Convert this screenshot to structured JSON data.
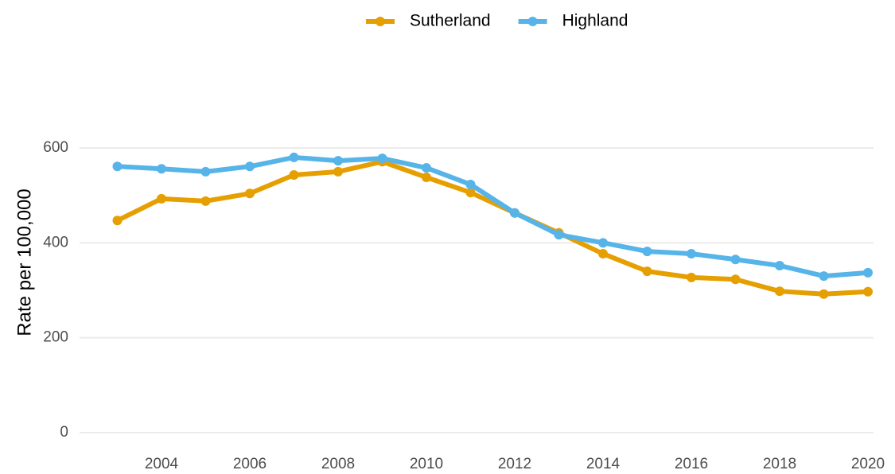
{
  "chart_data": {
    "type": "line",
    "y_label": "Rate per 100,000",
    "x": [
      2003,
      2004,
      2005,
      2006,
      2007,
      2008,
      2009,
      2010,
      2011,
      2012,
      2013,
      2014,
      2015,
      2016,
      2017,
      2018,
      2019,
      2020
    ],
    "series": [
      {
        "name": "Sutherland",
        "color": "#E69F00",
        "values": [
          447,
          493,
          488,
          504,
          543,
          550,
          571,
          538,
          506,
          463,
          421,
          377,
          340,
          327,
          323,
          298,
          292,
          297
        ]
      },
      {
        "name": "Highland",
        "color": "#56B4E9",
        "values": [
          561,
          556,
          550,
          561,
          580,
          573,
          578,
          558,
          523,
          463,
          417,
          400,
          382,
          377,
          365,
          352,
          330,
          337
        ]
      }
    ],
    "xlim": [
      2003,
      2020
    ],
    "xticks": [
      2004,
      2006,
      2008,
      2010,
      2012,
      2014,
      2016,
      2018,
      2020
    ],
    "ylim": [
      0,
      600
    ],
    "yticks": [
      0,
      200,
      400,
      600
    ],
    "grid": true,
    "legend": "top"
  }
}
